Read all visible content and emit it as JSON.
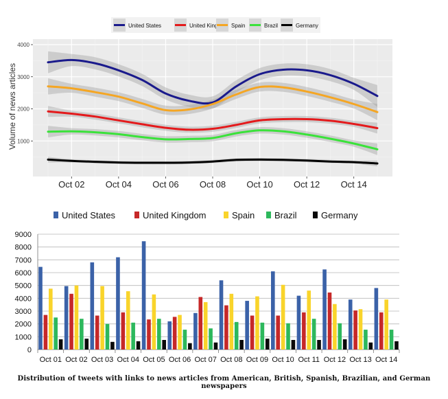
{
  "caption": "Distribution of tweets with links to news articles from American, British, Spanish, Brazilian, and German newspapers",
  "chart_data": [
    {
      "type": "line",
      "title": "",
      "xlabel": "",
      "ylabel": "Volume of news articles",
      "x_ticks": [
        "Oct 02",
        "Oct 04",
        "Oct 06",
        "Oct 08",
        "Oct 10",
        "Oct 12",
        "Oct 14"
      ],
      "x": [
        "Oct 01",
        "Oct 02",
        "Oct 03",
        "Oct 04",
        "Oct 05",
        "Oct 06",
        "Oct 07",
        "Oct 08",
        "Oct 09",
        "Oct 10",
        "Oct 11",
        "Oct 12",
        "Oct 13",
        "Oct 14",
        "Oct 15"
      ],
      "ylim": [
        0,
        4000
      ],
      "y_ticks": [
        1000,
        2000,
        3000,
        4000
      ],
      "grid": true,
      "background": "#ebebeb",
      "legend_position": "top",
      "confidence_band": true,
      "series": [
        {
          "name": "United States",
          "color": "#1a1a8c",
          "values": [
            3450,
            3520,
            3420,
            3200,
            2900,
            2480,
            2250,
            2200,
            2700,
            3080,
            3220,
            3200,
            3050,
            2780,
            2400
          ]
        },
        {
          "name": "United Kingdom",
          "color": "#e41a1c",
          "values": [
            1920,
            1850,
            1760,
            1640,
            1520,
            1410,
            1350,
            1380,
            1500,
            1640,
            1680,
            1680,
            1630,
            1530,
            1400
          ]
        },
        {
          "name": "Spain",
          "color": "#f5a623",
          "values": [
            2700,
            2640,
            2520,
            2380,
            2170,
            1960,
            1980,
            2150,
            2450,
            2680,
            2670,
            2540,
            2360,
            2150,
            1900
          ]
        },
        {
          "name": "Brazil",
          "color": "#3ae23a",
          "values": [
            1290,
            1300,
            1270,
            1210,
            1120,
            1050,
            1060,
            1090,
            1240,
            1330,
            1300,
            1200,
            1070,
            920,
            740
          ]
        },
        {
          "name": "Germany",
          "color": "#000000",
          "values": [
            420,
            380,
            350,
            330,
            320,
            320,
            330,
            360,
            410,
            420,
            410,
            390,
            360,
            340,
            300
          ]
        }
      ]
    },
    {
      "type": "bar",
      "title": "",
      "xlabel": "",
      "ylabel": "",
      "categories": [
        "Oct 01",
        "Oct 02",
        "Oct 03",
        "Oct 04",
        "Oct 05",
        "Oct 06",
        "Oct 07",
        "Oct 08",
        "Oct 09",
        "Oct 10",
        "Oct 11",
        "Oct 12",
        "Oct 13",
        "Oct 14"
      ],
      "ylim": [
        0,
        9000
      ],
      "y_ticks": [
        0,
        1000,
        2000,
        3000,
        4000,
        5000,
        6000,
        7000,
        8000,
        9000
      ],
      "grid": true,
      "legend_position": "top",
      "series": [
        {
          "name": "United States",
          "color": "#3b62a8",
          "values": [
            6450,
            4950,
            6800,
            7200,
            8450,
            2200,
            2850,
            5400,
            3800,
            6100,
            4200,
            6250,
            3900,
            4800
          ]
        },
        {
          "name": "United Kingdom",
          "color": "#c62828",
          "values": [
            2700,
            4350,
            2650,
            2900,
            2350,
            2550,
            4100,
            3450,
            2650,
            2650,
            2900,
            4450,
            3050,
            2900
          ]
        },
        {
          "name": "Spain",
          "color": "#f9d42b",
          "values": [
            4750,
            5000,
            4950,
            4550,
            4300,
            2700,
            3700,
            4350,
            4150,
            5050,
            4600,
            3550,
            3150,
            3900
          ]
        },
        {
          "name": "Brazil",
          "color": "#2db85c",
          "values": [
            2500,
            2400,
            2000,
            2100,
            2400,
            1550,
            1650,
            2150,
            2100,
            2050,
            2400,
            2050,
            1550,
            1550
          ]
        },
        {
          "name": "Germany",
          "color": "#0a0a0a",
          "values": [
            800,
            850,
            600,
            650,
            750,
            500,
            550,
            750,
            850,
            750,
            750,
            800,
            550,
            650
          ]
        }
      ]
    }
  ]
}
